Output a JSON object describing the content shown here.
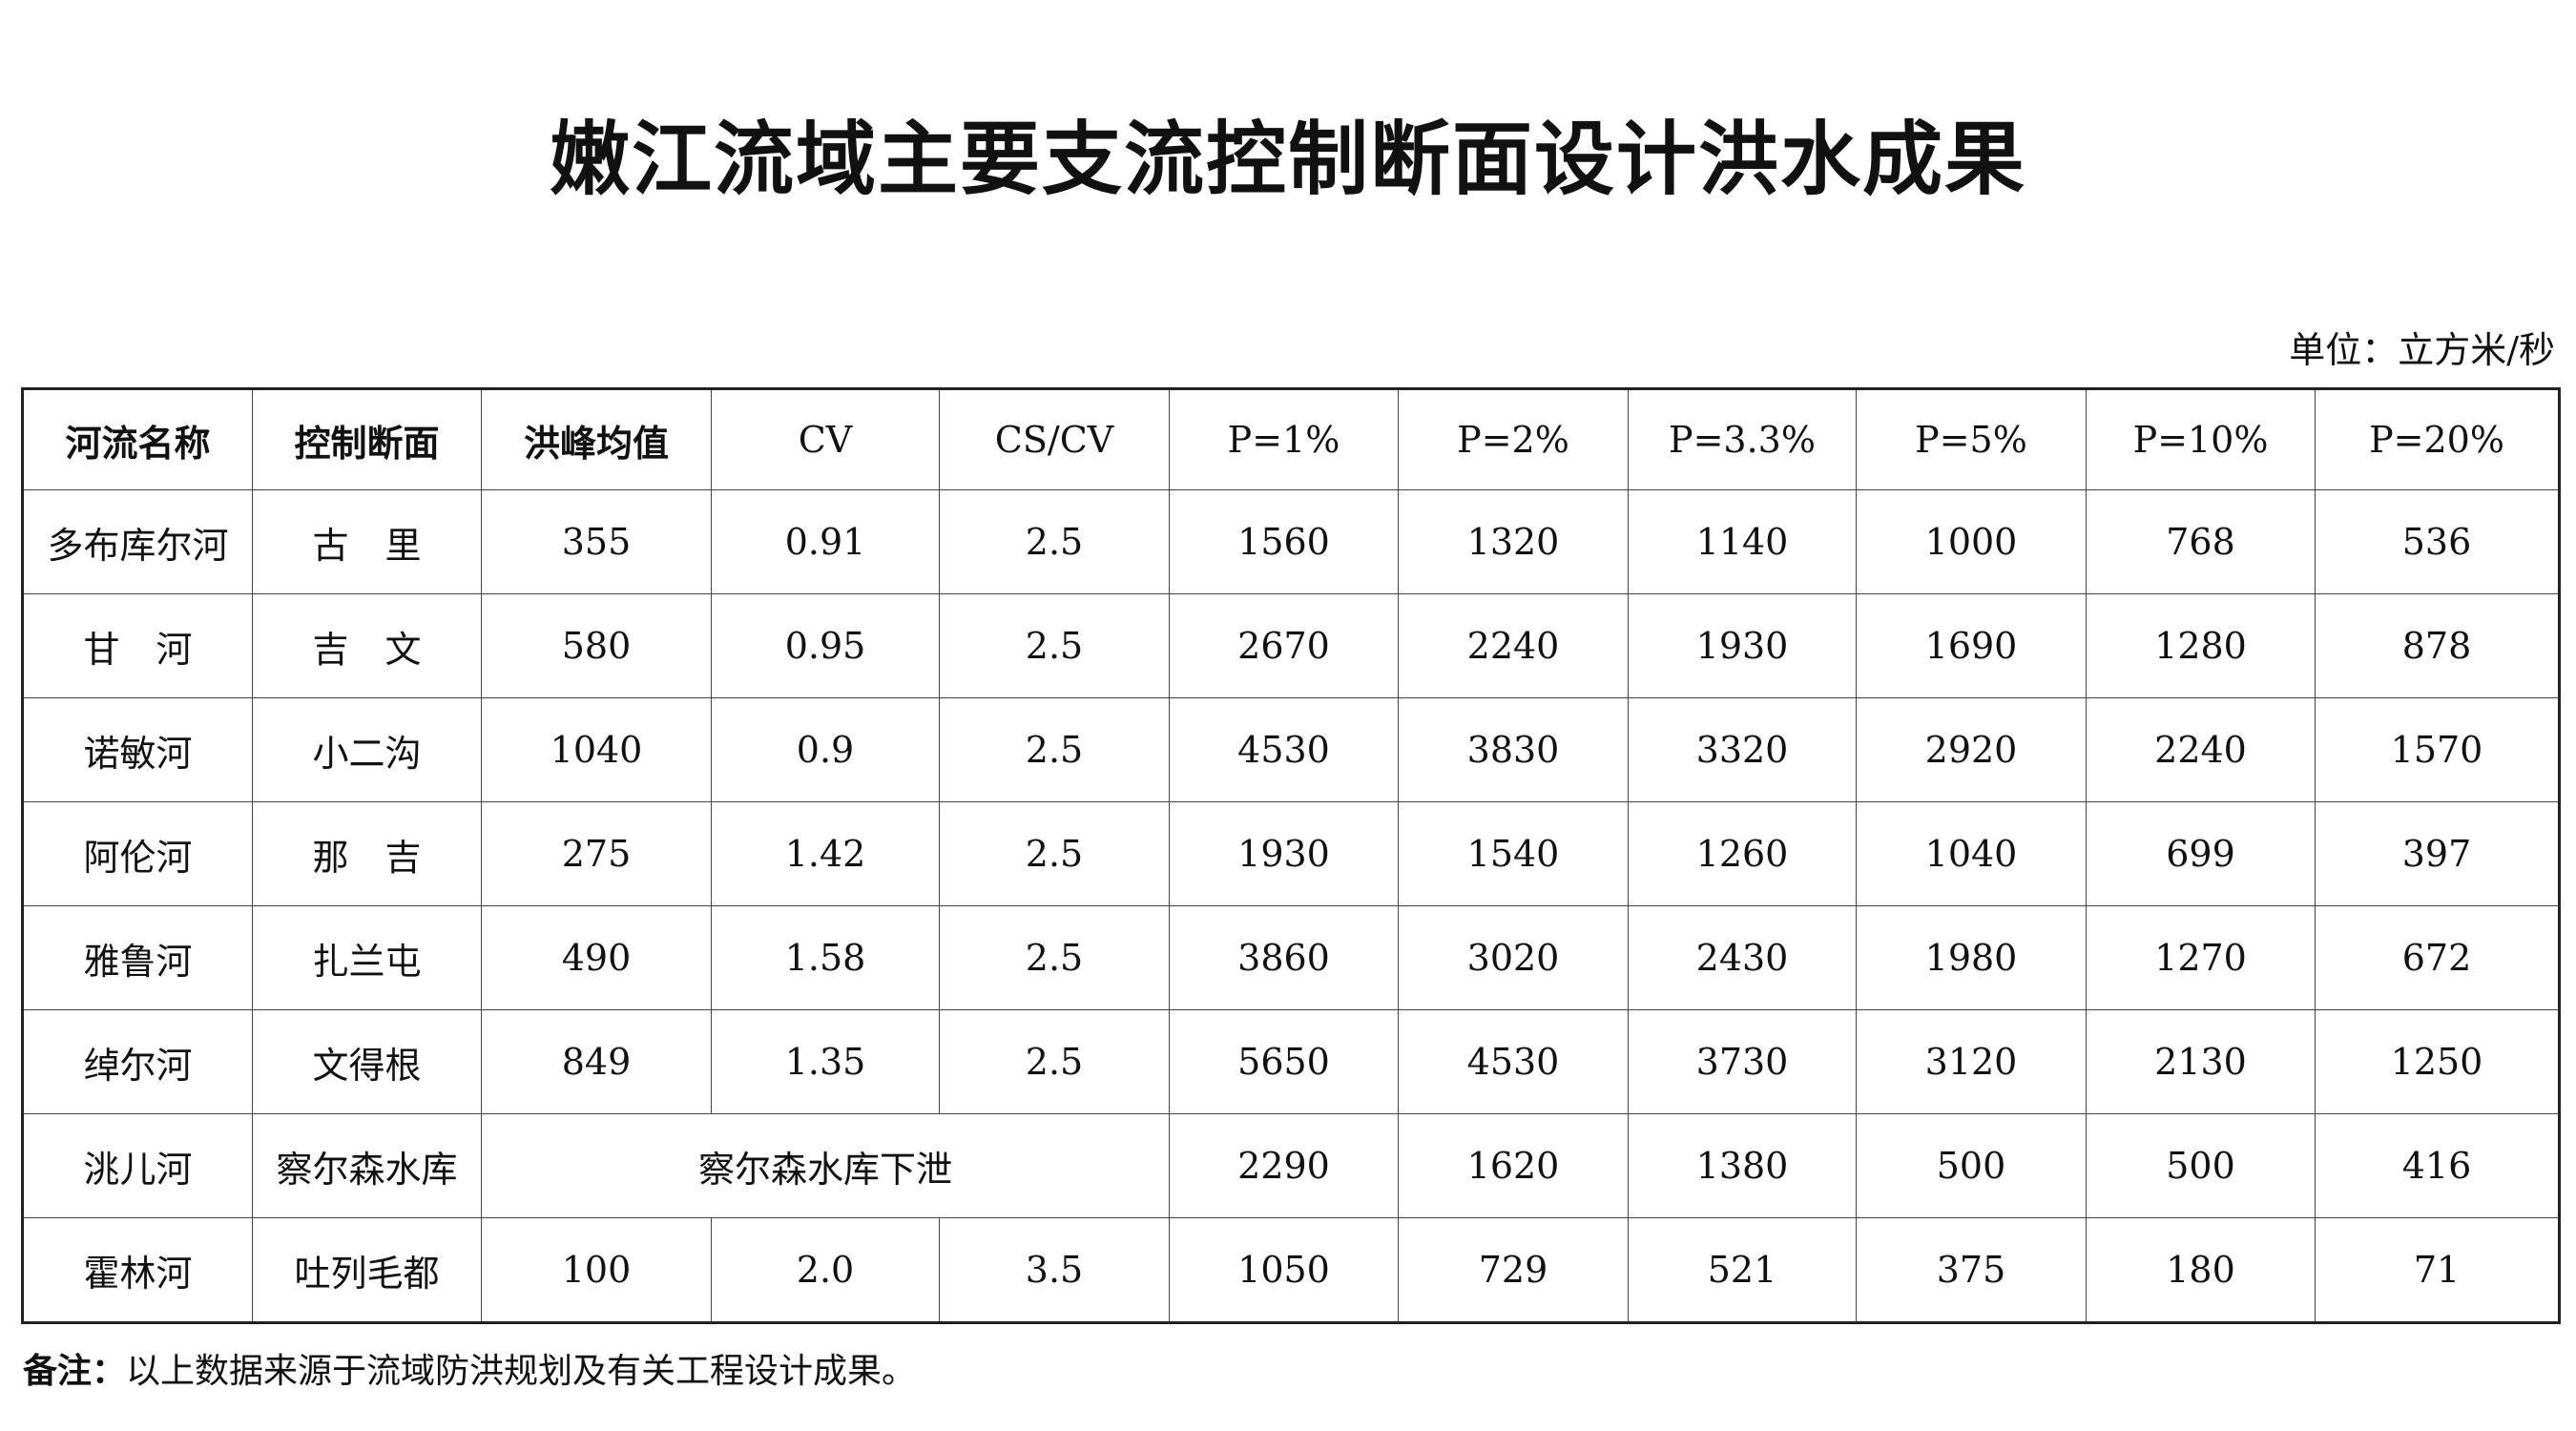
{
  "title": "嫩江流域主要支流控制断面设计洪水成果",
  "unit": "单位：立方米/秒",
  "table": {
    "headers": [
      "河流名称",
      "控制断面",
      "洪峰均值",
      "CV",
      "CS/CV",
      "P=1%",
      "P=2%",
      "P=3.3%",
      "P=5%",
      "P=10%",
      "P=20%"
    ],
    "rows": [
      [
        "多布库尔河",
        "古　里",
        "355",
        "0.91",
        "2.5",
        "1560",
        "1320",
        "1140",
        "1000",
        "768",
        "536"
      ],
      [
        "甘　河",
        "吉　文",
        "580",
        "0.95",
        "2.5",
        "2670",
        "2240",
        "1930",
        "1690",
        "1280",
        "878"
      ],
      [
        "诺敏河",
        "小二沟",
        "1040",
        "0.9",
        "2.5",
        "4530",
        "3830",
        "3320",
        "2920",
        "2240",
        "1570"
      ],
      [
        "阿伦河",
        "那　吉",
        "275",
        "1.42",
        "2.5",
        "1930",
        "1540",
        "1260",
        "1040",
        "699",
        "397"
      ],
      [
        "雅鲁河",
        "扎兰屯",
        "490",
        "1.58",
        "2.5",
        "3860",
        "3020",
        "2430",
        "1980",
        "1270",
        "672"
      ],
      [
        "绰尔河",
        "文得根",
        "849",
        "1.35",
        "2.5",
        "5650",
        "4530",
        "3730",
        "3120",
        "2130",
        "1250"
      ],
      [
        "洮儿河",
        "察尔森水库",
        "察尔森水库下泄",
        "2290",
        "1620",
        "1380",
        "500",
        "500",
        "416"
      ],
      [
        "霍林河",
        "吐列毛都",
        "100",
        "2.0",
        "3.5",
        "1050",
        "729",
        "521",
        "375",
        "180",
        "71"
      ]
    ]
  },
  "note": {
    "label": "备注：",
    "text": "以上数据来源于流域防洪规划及有关工程设计成果。"
  }
}
